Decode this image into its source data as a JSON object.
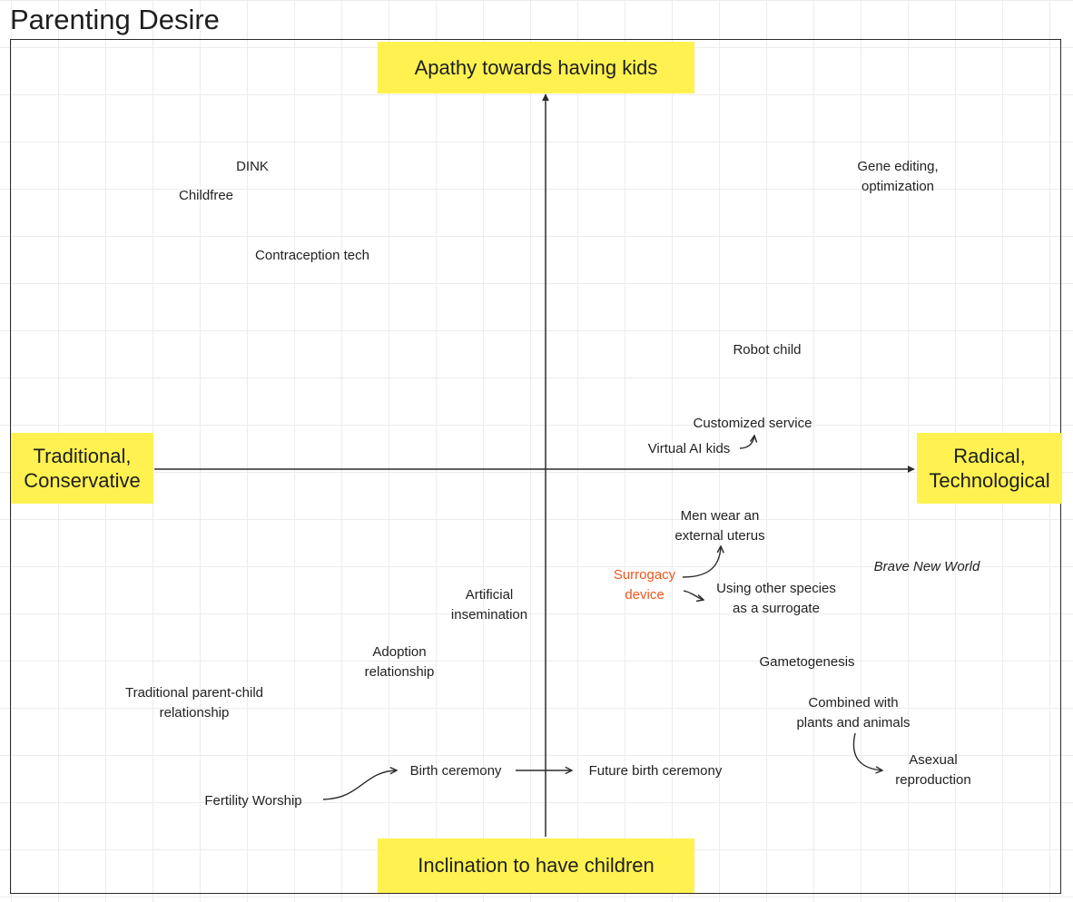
{
  "title": "Parenting Desire",
  "axes": {
    "top": "Apathy towards having kids",
    "bottom": "Inclination to have children",
    "left": [
      "Traditional,",
      "Conservative"
    ],
    "right": [
      "Radical,",
      "Technological"
    ]
  },
  "items": {
    "dink": [
      "DINK"
    ],
    "childfree": [
      "Childfree"
    ],
    "contraception": [
      "Contraception tech"
    ],
    "gene_editing": [
      "Gene editing,",
      "optimization"
    ],
    "robot_child": [
      "Robot child"
    ],
    "customized_service": [
      "Customized service"
    ],
    "virtual_ai_kids": [
      "Virtual AI kids"
    ],
    "men_uterus": [
      "Men wear an",
      "external uterus"
    ],
    "brave_new_world": [
      "Brave New World"
    ],
    "surrogacy_device": [
      "Surrogacy",
      "device"
    ],
    "other_species": [
      "Using other species",
      "as a surrogate"
    ],
    "artificial_insemination": [
      "Artificial",
      "insemination"
    ],
    "adoption": [
      "Adoption",
      "relationship"
    ],
    "gametogenesis": [
      "Gametogenesis"
    ],
    "traditional_parent_child": [
      "Traditional parent-child",
      "relationship"
    ],
    "combined_plants_animals": [
      "Combined with",
      "plants and animals"
    ],
    "asexual_reproduction": [
      "Asexual",
      "reproduction"
    ],
    "birth_ceremony": [
      "Birth ceremony"
    ],
    "future_birth_ceremony": [
      "Future birth ceremony"
    ],
    "fertility_worship": [
      "Fertility Worship"
    ]
  },
  "colors": {
    "sticky": "#fff250",
    "accent_text": "#f2561d",
    "line": "#2b2b2b",
    "grid": "#ececec"
  }
}
